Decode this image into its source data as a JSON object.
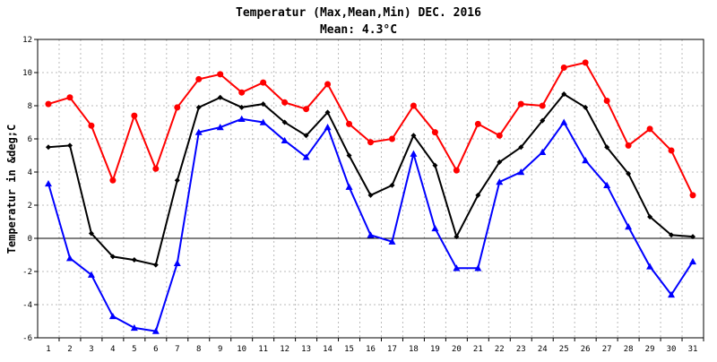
{
  "chart_data": {
    "type": "line",
    "title": "Temperatur (Max,Mean,Min) DEC. 2016",
    "subtitle": "Mean: 4.3°C",
    "ylabel": "Temperatur in &deg;C",
    "xlabel": "",
    "categories": [
      "1",
      "2",
      "3",
      "4",
      "5",
      "6",
      "7",
      "8",
      "9",
      "10",
      "11",
      "12",
      "13",
      "14",
      "15",
      "16",
      "17",
      "18",
      "19",
      "20",
      "21",
      "22",
      "23",
      "24",
      "25",
      "26",
      "27",
      "28",
      "29",
      "30",
      "31"
    ],
    "ylim": [
      -6,
      12
    ],
    "yticks": [
      "-6",
      "-4",
      "-2",
      "0",
      "2",
      "4",
      "6",
      "8",
      "10",
      "12"
    ],
    "grid": true,
    "legend": "none",
    "series": [
      {
        "color": "#ff0000",
        "marker": "circle",
        "values": [
          8.1,
          8.5,
          6.8,
          3.5,
          7.4,
          4.2,
          7.9,
          9.6,
          9.9,
          8.8,
          9.4,
          8.2,
          7.8,
          9.3,
          6.9,
          5.8,
          6.0,
          8.0,
          6.4,
          4.1,
          6.9,
          6.2,
          8.1,
          8.0,
          10.3,
          10.6,
          8.3,
          5.6,
          6.6,
          5.3,
          2.6
        ]
      },
      {
        "color": "#000000",
        "marker": "diamond",
        "values": [
          5.5,
          5.6,
          0.3,
          -1.1,
          -1.3,
          -1.6,
          3.5,
          7.9,
          8.5,
          7.9,
          8.1,
          7.0,
          6.2,
          7.6,
          5.0,
          2.6,
          3.2,
          6.2,
          4.4,
          0.1,
          2.6,
          4.6,
          5.5,
          7.1,
          8.7,
          7.9,
          5.5,
          3.9,
          1.3,
          0.2,
          0.1
        ]
      },
      {
        "color": "#0000ff",
        "marker": "triangle",
        "values": [
          3.3,
          -1.2,
          -2.2,
          -4.7,
          -5.4,
          -5.6,
          -1.5,
          6.4,
          6.7,
          7.2,
          7.0,
          5.9,
          4.9,
          6.7,
          3.1,
          0.2,
          -0.2,
          5.1,
          0.6,
          -1.8,
          -1.8,
          3.4,
          4.0,
          5.2,
          7.0,
          4.7,
          3.2,
          0.7,
          -1.7,
          -3.4,
          -1.4
        ]
      }
    ]
  }
}
